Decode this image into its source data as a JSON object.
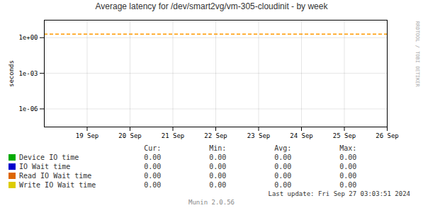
{
  "chart_data": {
    "type": "line",
    "title": "Average latency for /dev/smart2vg/vm-305-cloudinit  -  by week",
    "ylabel": "seconds",
    "log": "y",
    "grid": true,
    "xlim": [
      0,
      8
    ],
    "xticks": [
      {
        "value": 1,
        "label": "19 Sep"
      },
      {
        "value": 2,
        "label": "20 Sep"
      },
      {
        "value": 3,
        "label": "21 Sep"
      },
      {
        "value": 4,
        "label": "22 Sep"
      },
      {
        "value": 5,
        "label": "23 Sep"
      },
      {
        "value": 6,
        "label": "24 Sep"
      },
      {
        "value": 7,
        "label": "25 Sep"
      },
      {
        "value": 8,
        "label": "26 Sep"
      }
    ],
    "ylim": [
      3e-08,
      30
    ],
    "yticks": [
      {
        "value": 1e-06,
        "label": "1e-06"
      },
      {
        "value": 0.001,
        "label": "1e-03"
      },
      {
        "value": 1,
        "label": "1e+00"
      }
    ],
    "reference_lines": [
      {
        "y": 2.0,
        "color": "#ff9900",
        "line_style": "dashed"
      }
    ],
    "summary_headers": [
      "Cur:",
      "Min:",
      "Avg:",
      "Max:"
    ],
    "series": [
      {
        "name": "Device IO time",
        "color": "#00aa00",
        "summary_values": [
          0,
          0,
          0,
          0
        ],
        "summary_labels": [
          "0.00",
          "0.00",
          "0.00",
          "0.00"
        ]
      },
      {
        "name": "IO Wait time",
        "color": "#0000cc",
        "summary_values": [
          0,
          0,
          0,
          0
        ],
        "summary_labels": [
          "0.00",
          "0.00",
          "0.00",
          "0.00"
        ]
      },
      {
        "name": "Read IO Wait time",
        "color": "#dd6600",
        "summary_values": [
          0,
          0,
          0,
          0
        ],
        "summary_labels": [
          "0.00",
          "0.00",
          "0.00",
          "0.00"
        ]
      },
      {
        "name": "Write IO Wait time",
        "color": "#ddcc00",
        "summary_values": [
          0,
          0,
          0,
          0
        ],
        "summary_labels": [
          "0.00",
          "0.00",
          "0.00",
          "0.00"
        ]
      }
    ],
    "annotations": {
      "last_update": "Last update: Fri Sep 27 03:03:51 2024",
      "version": "Munin 2.0.56",
      "watermark": "RRDTOOL / TOBI OETIKER"
    }
  }
}
